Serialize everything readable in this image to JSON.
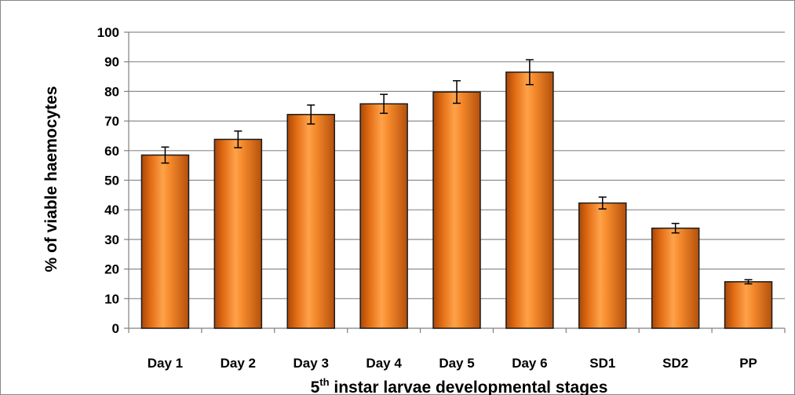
{
  "chart_data": {
    "type": "bar",
    "categories": [
      "Day 1",
      "Day 2",
      "Day 3",
      "Day 4",
      "Day 5",
      "Day 6",
      "SD1",
      "SD2",
      "PP"
    ],
    "values": [
      58.5,
      63.8,
      72.2,
      75.8,
      79.8,
      86.5,
      42.3,
      33.8,
      15.7
    ],
    "errors": [
      2.7,
      2.8,
      3.2,
      3.2,
      3.8,
      4.2,
      2.0,
      1.6,
      0.7
    ],
    "ylabel": "% of viable haemocytes",
    "xlabel_main": "5",
    "xlabel_sup": "th",
    "xlabel_rest": " instar larvae developmental stages",
    "ylim": [
      0,
      100
    ],
    "yticks": [
      0,
      10,
      20,
      30,
      40,
      50,
      60,
      70,
      80,
      90,
      100
    ],
    "grid": true,
    "legend": "none",
    "colors": {
      "bar": "#f07d1c",
      "bar_light": "#ffb263",
      "bar_dark": "#b8520a",
      "gridline": "#8c8c8c",
      "error": "#000000"
    }
  }
}
